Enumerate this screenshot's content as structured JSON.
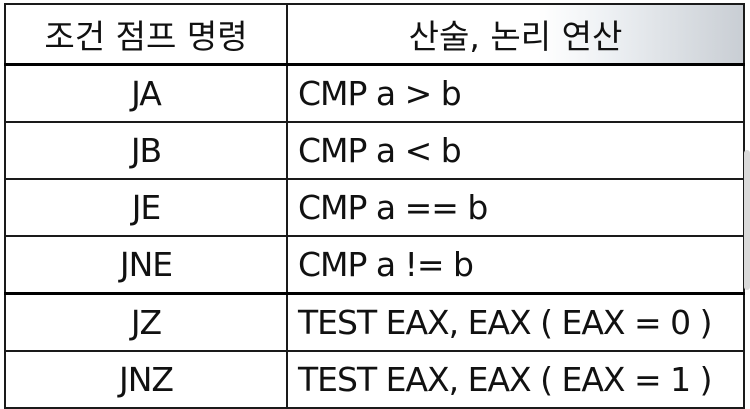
{
  "table": {
    "header": {
      "col1": "조건 점프 명령",
      "col2": "산술, 논리 연산"
    },
    "rows": [
      {
        "code": "JA",
        "op": "CMP a  >  b"
      },
      {
        "code": "JB",
        "op": "CMP a  <  b"
      },
      {
        "code": "JE",
        "op": "CMP a == b"
      },
      {
        "code": "JNE",
        "op": "CMP a  !=  b"
      },
      {
        "code": "JZ",
        "op": "TEST EAX, EAX ( EAX = 0 )"
      },
      {
        "code": "JNZ",
        "op": "TEST EAX, EAX ( EAX = 1 )"
      }
    ]
  }
}
